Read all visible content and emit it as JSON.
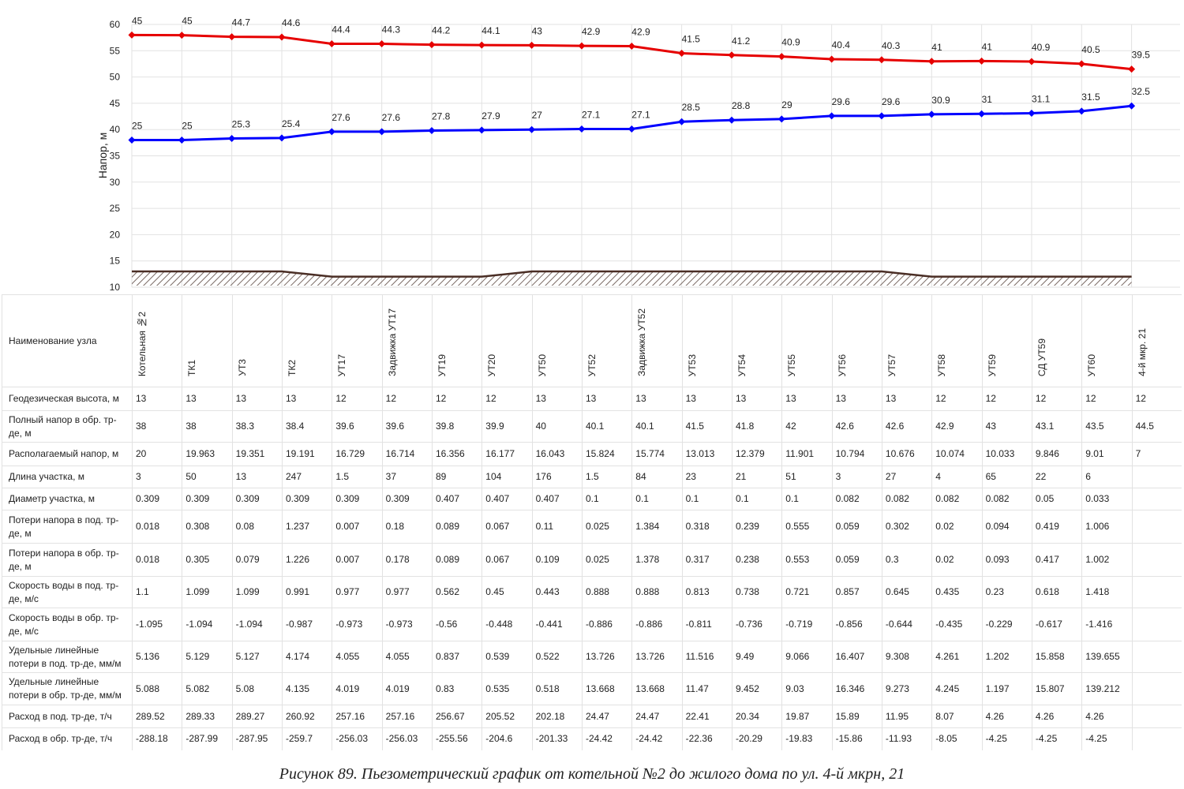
{
  "chart_data": {
    "type": "line",
    "ylabel": "Напор, м",
    "ylim": [
      10,
      60
    ],
    "yticks": [
      10,
      15,
      20,
      25,
      30,
      35,
      40,
      45,
      50,
      55,
      60
    ],
    "grid": true,
    "categories": [
      "Котельная №2",
      "ТК1",
      "УТ3",
      "ТК2",
      "УТ17",
      "Задвижка УТ17",
      "УТ19",
      "УТ20",
      "УТ50",
      "УТ52",
      "Задвижка УТ52",
      "УТ53",
      "УТ54",
      "УТ55",
      "УТ56",
      "УТ57",
      "УТ58",
      "УТ59",
      "СД УТ59",
      "УТ60",
      "4-й мкр. 21"
    ],
    "series": [
      {
        "color": "#e60000",
        "values": [
          58,
          57.963,
          57.651,
          57.591,
          56.329,
          56.314,
          56.156,
          56.077,
          56.043,
          55.924,
          55.874,
          54.513,
          54.179,
          53.901,
          53.394,
          53.276,
          52.974,
          53.033,
          52.946,
          52.51,
          51.5
        ],
        "point_labels": [
          "45",
          "45",
          "44.7",
          "44.6",
          "44.4",
          "44.3",
          "44.2",
          "44.1",
          "43",
          "42.9",
          "42.9",
          "41.5",
          "41.2",
          "40.9",
          "40.4",
          "40.3",
          "41",
          "41",
          "40.9",
          "40.5",
          "39.5"
        ]
      },
      {
        "color": "#0000ff",
        "values": [
          38,
          38,
          38.3,
          38.4,
          39.6,
          39.6,
          39.8,
          39.9,
          40,
          40.1,
          40.1,
          41.5,
          41.8,
          42,
          42.6,
          42.6,
          42.9,
          43,
          43.1,
          43.5,
          44.5
        ],
        "point_labels": [
          "25",
          "25",
          "25.3",
          "25.4",
          "27.6",
          "27.6",
          "27.8",
          "27.9",
          "27",
          "27.1",
          "27.1",
          "28.5",
          "28.8",
          "29",
          "29.6",
          "29.6",
          "30.9",
          "31",
          "31.1",
          "31.5",
          "32.5"
        ]
      },
      {
        "color": "#4a2e25",
        "hatch": true,
        "values": [
          13,
          13,
          13,
          13,
          12,
          12,
          12,
          12,
          13,
          13,
          13,
          13,
          13,
          13,
          13,
          13,
          12,
          12,
          12,
          12,
          12
        ]
      }
    ]
  },
  "table": {
    "header": "Наименование узла",
    "rows": [
      {
        "label": "Геодезическая высота, м",
        "values": [
          13,
          13,
          13,
          13,
          12,
          12,
          12,
          12,
          13,
          13,
          13,
          13,
          13,
          13,
          13,
          13,
          12,
          12,
          12,
          12,
          12
        ]
      },
      {
        "label": "Полный напор в обр. тр-де, м",
        "values": [
          38,
          38,
          38.3,
          38.4,
          39.6,
          39.6,
          39.8,
          39.9,
          40,
          40.1,
          40.1,
          41.5,
          41.8,
          42,
          42.6,
          42.6,
          42.9,
          43,
          43.1,
          43.5,
          44.5
        ]
      },
      {
        "label": "Располагаемый напор, м",
        "values": [
          20,
          19.963,
          19.351,
          19.191,
          16.729,
          16.714,
          16.356,
          16.177,
          16.043,
          15.824,
          15.774,
          13.013,
          12.379,
          11.901,
          10.794,
          10.676,
          10.074,
          10.033,
          9.846,
          9.01,
          7
        ]
      },
      {
        "label": "Длина участка, м",
        "values": [
          3,
          50,
          13,
          247,
          1.5,
          37,
          89,
          104,
          176,
          1.5,
          84,
          23,
          21,
          51,
          3,
          27,
          4,
          65,
          22,
          6
        ]
      },
      {
        "label": "Диаметр участка, м",
        "values": [
          0.309,
          0.309,
          0.309,
          0.309,
          0.309,
          0.309,
          0.407,
          0.407,
          0.407,
          0.1,
          0.1,
          0.1,
          0.1,
          0.1,
          0.082,
          0.082,
          0.082,
          0.082,
          0.05,
          0.033
        ]
      },
      {
        "label": "Потери напора в под. тр-де, м",
        "values": [
          0.018,
          0.308,
          0.08,
          1.237,
          0.007,
          0.18,
          0.089,
          0.067,
          0.11,
          0.025,
          1.384,
          0.318,
          0.239,
          0.555,
          0.059,
          0.302,
          0.02,
          0.094,
          0.419,
          1.006
        ]
      },
      {
        "label": "Потери напора в обр. тр-де, м",
        "values": [
          0.018,
          0.305,
          0.079,
          1.226,
          0.007,
          0.178,
          0.089,
          0.067,
          0.109,
          0.025,
          1.378,
          0.317,
          0.238,
          0.553,
          0.059,
          0.3,
          0.02,
          0.093,
          0.417,
          1.002
        ]
      },
      {
        "label": "Скорость воды в под. тр-де, м/с",
        "values": [
          1.1,
          1.099,
          1.099,
          0.991,
          0.977,
          0.977,
          0.562,
          0.45,
          0.443,
          0.888,
          0.888,
          0.813,
          0.738,
          0.721,
          0.857,
          0.645,
          0.435,
          0.23,
          0.618,
          1.418
        ]
      },
      {
        "label": "Скорость воды в обр. тр-де, м/с",
        "values": [
          -1.095,
          -1.094,
          -1.094,
          -0.987,
          -0.973,
          -0.973,
          -0.56,
          -0.448,
          -0.441,
          -0.886,
          -0.886,
          -0.811,
          -0.736,
          -0.719,
          -0.856,
          -0.644,
          -0.435,
          -0.229,
          -0.617,
          -1.416
        ]
      },
      {
        "label": "Удельные линейные потери в под. тр-де, мм/м",
        "values": [
          5.136,
          5.129,
          5.127,
          4.174,
          4.055,
          4.055,
          0.837,
          0.539,
          0.522,
          13.726,
          13.726,
          11.516,
          9.49,
          9.066,
          16.407,
          9.308,
          4.261,
          1.202,
          15.858,
          139.655
        ]
      },
      {
        "label": "Удельные линейные потери в обр. тр-де, мм/м",
        "values": [
          5.088,
          5.082,
          5.08,
          4.135,
          4.019,
          4.019,
          0.83,
          0.535,
          0.518,
          13.668,
          13.668,
          11.47,
          9.452,
          9.03,
          16.346,
          9.273,
          4.245,
          1.197,
          15.807,
          139.212
        ]
      },
      {
        "label": "Расход в под. тр-де, т/ч",
        "values": [
          289.52,
          289.33,
          289.27,
          260.92,
          257.16,
          257.16,
          256.67,
          205.52,
          202.18,
          24.47,
          24.47,
          22.41,
          20.34,
          19.87,
          15.89,
          11.95,
          8.07,
          4.26,
          4.26,
          4.26
        ]
      },
      {
        "label": "Расход в обр. тр-де, т/ч",
        "values": [
          -288.18,
          -287.99,
          -287.95,
          -259.7,
          -256.03,
          -256.03,
          -255.56,
          -204.6,
          -201.33,
          -24.42,
          -24.42,
          -22.36,
          -20.29,
          -19.83,
          -15.86,
          -11.93,
          -8.05,
          -4.25,
          -4.25,
          -4.25
        ]
      }
    ]
  },
  "caption": "Рисунок 89. Пьезометрический график от котельной №2 до жилого дома по ул. 4-й мкрн, 21"
}
